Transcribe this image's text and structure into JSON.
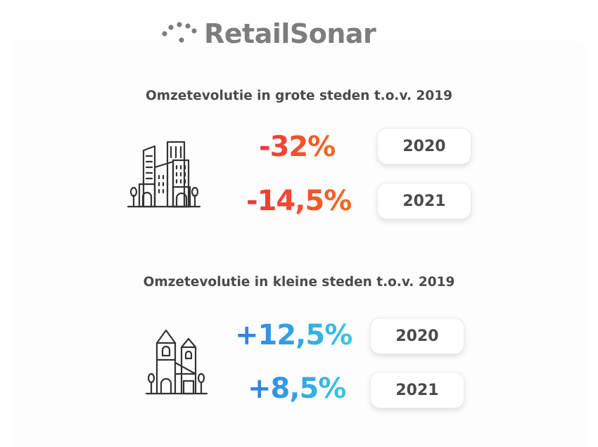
{
  "logo": {
    "text": "RetailSonar",
    "icon": "dots-arc-icon",
    "color": "#7d7d7d"
  },
  "sections": [
    {
      "title": "Omzetevolutie in grote steden t.o.v. 2019",
      "icon": "city-buildings-icon",
      "rows": [
        {
          "value": "-32%",
          "year": "2020"
        },
        {
          "value": "-14,5%",
          "year": "2021"
        }
      ]
    },
    {
      "title": "Omzetevolutie in kleine steden t.o.v. 2019",
      "icon": "church-village-icon",
      "rows": [
        {
          "value": "+12,5%",
          "year": "2020"
        },
        {
          "value": "+8,5%",
          "year": "2021"
        }
      ]
    }
  ],
  "colors": {
    "negative_start": "#f1323f",
    "negative_end": "#f56a1c",
    "positive_start": "#2f7fe3",
    "positive_end": "#39c6e4",
    "text": "#4a4a4a"
  }
}
